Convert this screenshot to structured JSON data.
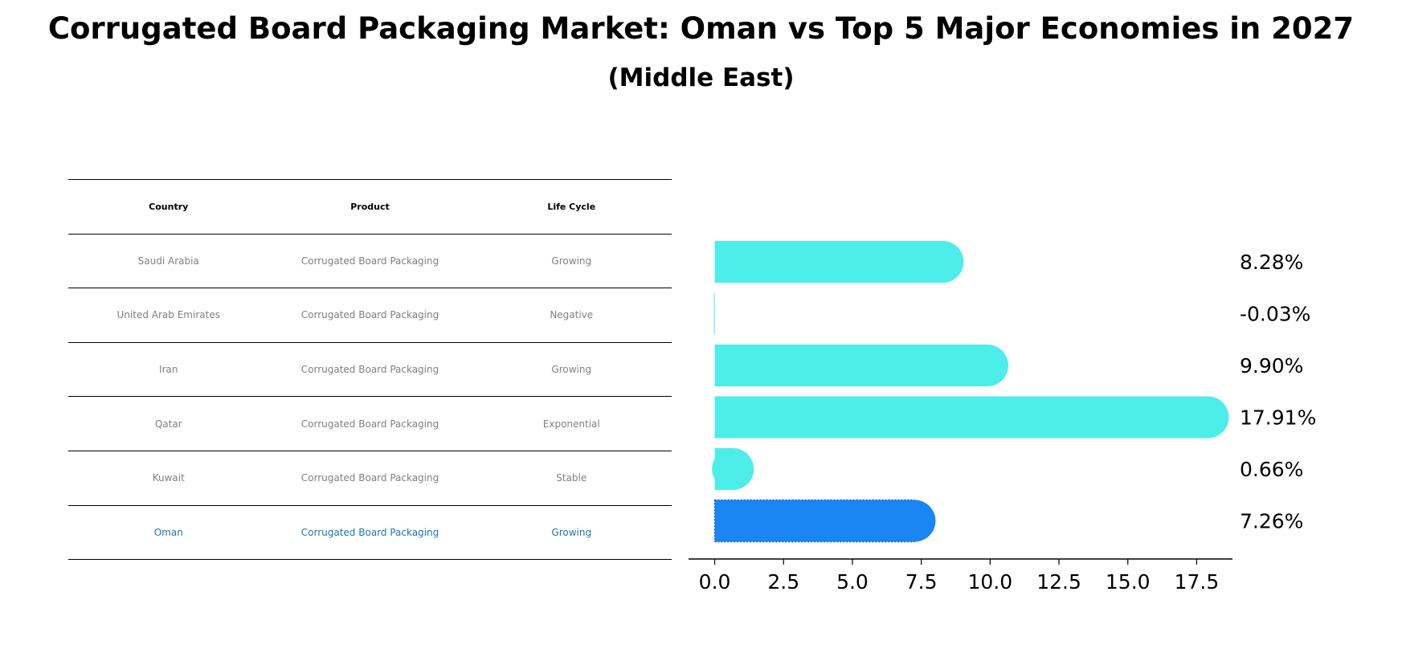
{
  "title": "Corrugated Board Packaging Market: Oman vs Top 5 Major Economies in 2027",
  "subtitle": "(Middle East)",
  "table": {
    "headers": [
      "Country",
      "Product",
      "Life Cycle"
    ],
    "rows": [
      {
        "country": "Saudi Arabia",
        "product": "Corrugated Board Packaging",
        "life_cycle": "Growing"
      },
      {
        "country": "United Arab Emirates",
        "product": "Corrugated Board Packaging",
        "life_cycle": "Negative"
      },
      {
        "country": "Iran",
        "product": "Corrugated Board Packaging",
        "life_cycle": "Growing"
      },
      {
        "country": "Qatar",
        "product": "Corrugated Board Packaging",
        "life_cycle": "Exponential"
      },
      {
        "country": "Kuwait",
        "product": "Corrugated Board Packaging",
        "life_cycle": "Stable"
      },
      {
        "country": "Oman",
        "product": "Corrugated Board Packaging",
        "life_cycle": "Growing"
      }
    ]
  },
  "colors": {
    "bar": "#4dede9",
    "highlight": "#1a86f3",
    "highlight_text": "#1f77b4",
    "muted_text": "#808080"
  },
  "chart_data": {
    "type": "bar",
    "orientation": "horizontal",
    "categories": [
      "Saudi Arabia",
      "United Arab Emirates",
      "Iran",
      "Qatar",
      "Kuwait",
      "Oman"
    ],
    "values": [
      8.28,
      -0.03,
      9.9,
      17.91,
      0.66,
      7.26
    ],
    "value_labels": [
      "8.28%",
      "-0.03%",
      "9.90%",
      "17.91%",
      "0.66%",
      "7.26%"
    ],
    "highlight": "Oman",
    "xlim": [
      -0.95,
      18.8
    ],
    "xticks": [
      0.0,
      2.5,
      5.0,
      7.5,
      10.0,
      12.5,
      15.0,
      17.5
    ],
    "xtick_labels": [
      "0.0",
      "2.5",
      "5.0",
      "7.5",
      "10.0",
      "12.5",
      "15.0",
      "17.5"
    ],
    "xlabel": "",
    "ylabel": "",
    "grid": false,
    "legend": "none"
  }
}
